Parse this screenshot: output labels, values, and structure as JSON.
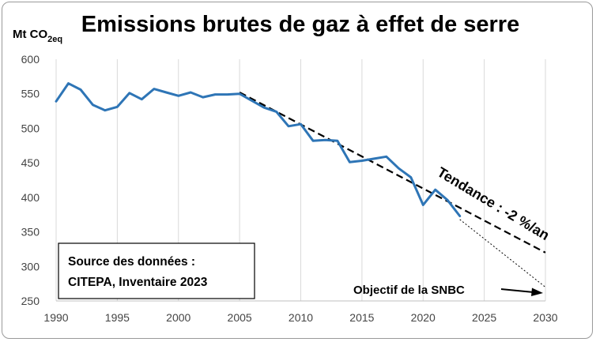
{
  "chart_data": {
    "type": "line",
    "title": "Emissions brutes de gaz à effet de serre",
    "ylabel_main": "Mt CO",
    "ylabel_sub": "2eq",
    "xlim": [
      1990,
      2030
    ],
    "ylim": [
      250,
      600
    ],
    "x_ticks": [
      1990,
      1995,
      2000,
      2005,
      2010,
      2015,
      2020,
      2025,
      2030
    ],
    "y_ticks": [
      250,
      300,
      350,
      400,
      450,
      500,
      550,
      600
    ],
    "grid": "vertical",
    "series": [
      {
        "color": "#2e75b6",
        "x": [
          1990,
          1991,
          1992,
          1993,
          1994,
          1995,
          1996,
          1997,
          1998,
          1999,
          2000,
          2001,
          2002,
          2003,
          2004,
          2005,
          2006,
          2007,
          2008,
          2009,
          2010,
          2011,
          2012,
          2013,
          2014,
          2015,
          2016,
          2017,
          2018,
          2019,
          2020,
          2021,
          2022,
          2023
        ],
        "y": [
          539,
          565,
          556,
          534,
          526,
          531,
          551,
          542,
          557,
          552,
          547,
          552,
          545,
          549,
          549,
          550,
          540,
          530,
          524,
          503,
          506,
          482,
          483,
          482,
          451,
          453,
          456,
          459,
          442,
          429,
          389,
          411,
          396,
          373
        ]
      }
    ],
    "trend": {
      "label": "Tendance : -2 %/an",
      "from": [
        2005,
        552
      ],
      "to": [
        2030,
        320
      ],
      "color": "#000000"
    },
    "target": {
      "label": "Objectif de la SNBC",
      "from": [
        2023,
        368
      ],
      "to": [
        2030,
        270
      ],
      "color": "#000000"
    },
    "source_box": {
      "line1": "Source des données :",
      "line2": "CITEPA, Inventaire 2023"
    }
  }
}
